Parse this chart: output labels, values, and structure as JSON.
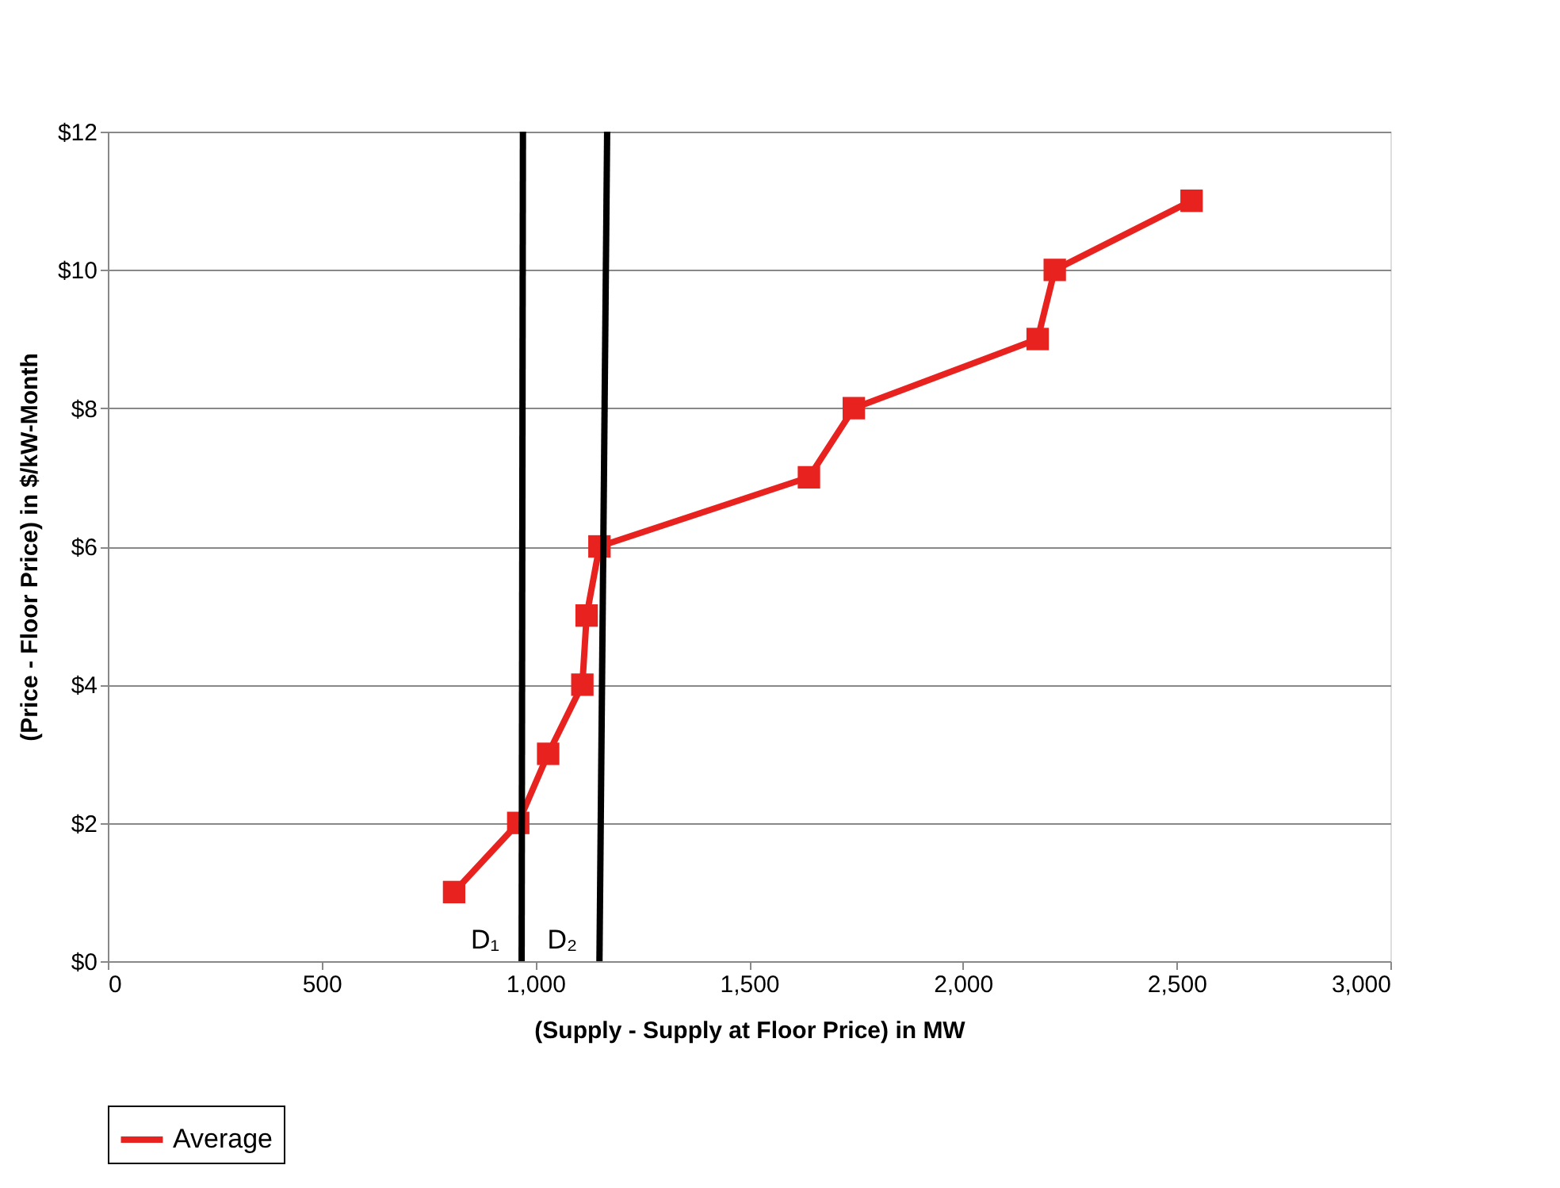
{
  "chart_data": {
    "type": "line",
    "xlabel": "(Supply -  Supply at Floor Price)  in MW",
    "ylabel": "(Price - Floor Price) in $/kW-Month",
    "xlim": [
      0,
      3000
    ],
    "ylim": [
      0,
      12
    ],
    "xticks": [
      0,
      500,
      {
        "value": 1000,
        "label": "1,000"
      },
      {
        "value": 1500,
        "label": "1,500"
      },
      {
        "value": 2000,
        "label": "2,000"
      },
      {
        "value": 2500,
        "label": "2,500"
      },
      {
        "value": 3000,
        "label": "3,000"
      }
    ],
    "yticks": [
      {
        "value": 0,
        "label": "$0"
      },
      {
        "value": 2,
        "label": "$2"
      },
      {
        "value": 4,
        "label": "$4"
      },
      {
        "value": 6,
        "label": "$6"
      },
      {
        "value": 8,
        "label": "$8"
      },
      {
        "value": 10,
        "label": "$10"
      },
      {
        "value": 12,
        "label": "$12"
      }
    ],
    "grid": "y",
    "legend": "bottom",
    "marker": "square",
    "series": [
      {
        "name": "Average",
        "color": "#e8231f",
        "x": [
          810,
          960,
          1030,
          1110,
          1120,
          1150,
          1640,
          1745,
          2175,
          2215,
          2535
        ],
        "values": [
          1,
          2,
          3,
          4,
          5,
          6,
          7,
          8,
          9,
          10,
          11
        ]
      },
      {
        "color": "#000000",
        "marker": "none",
        "x": [
          968,
          971
        ],
        "values": [
          0,
          12
        ]
      },
      {
        "color": "#000000",
        "marker": "none",
        "x": [
          1150,
          1168
        ],
        "values": [
          0,
          12
        ]
      }
    ],
    "annotations": [
      "D₁",
      "D₂"
    ]
  }
}
